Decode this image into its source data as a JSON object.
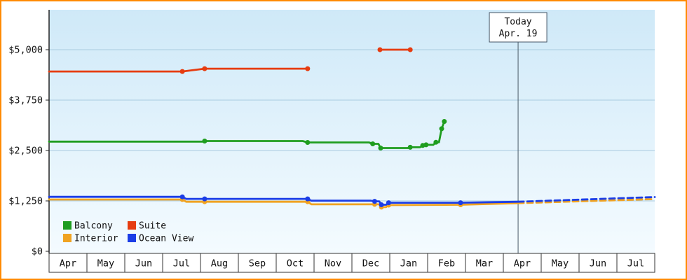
{
  "colors": {
    "frame_border": "#ff8a00",
    "plot_bg_top": "#cfe9f8",
    "plot_bg_bottom": "#f4fbff",
    "grid": "#a9cbdf",
    "axis": "#222222",
    "text": "#111111",
    "today_line": "#4a5a66",
    "today_box_border": "#445566",
    "today_box_bg": "#ffffff",
    "cell_bg": "#ffffff",
    "cell_border": "#333333"
  },
  "chart_data": {
    "type": "line",
    "title": "",
    "xlabel": "",
    "ylabel": "",
    "ylim": [
      0,
      6000
    ],
    "y_ticks": [
      {
        "value": 0,
        "label": "$0"
      },
      {
        "value": 1250,
        "label": "$1,250"
      },
      {
        "value": 2500,
        "label": "$2,500"
      },
      {
        "value": 3750,
        "label": "$3,750"
      },
      {
        "value": 5000,
        "label": "$5,000"
      }
    ],
    "months": [
      "Apr",
      "May",
      "Jun",
      "Jul",
      "Aug",
      "Sep",
      "Oct",
      "Nov",
      "Dec",
      "Jan",
      "Feb",
      "Mar",
      "Apr",
      "May",
      "Jun",
      "Jul"
    ],
    "today_marker": {
      "line1": "Today",
      "line2": "Apr. 19",
      "x_month": 12.39
    },
    "legend_rows": [
      [
        "Balcony",
        "Suite"
      ],
      [
        "Interior",
        "Ocean View"
      ]
    ],
    "series": [
      {
        "name": "Interior",
        "color": "#f0a322",
        "segments": [
          {
            "dashed": false,
            "points": [
              [
                0,
                1285
              ],
              [
                3.52,
                1285
              ],
              [
                3.62,
                1230
              ],
              [
                6.83,
                1230
              ],
              [
                6.93,
                1165
              ],
              [
                8.6,
                1165
              ],
              [
                8.72,
                1165
              ],
              [
                8.78,
                1095
              ],
              [
                8.9,
                1095
              ],
              [
                8.97,
                1145
              ],
              [
                10.87,
                1155
              ],
              [
                12.39,
                1195
              ]
            ]
          },
          {
            "dashed": true,
            "points": [
              [
                12.39,
                1195
              ],
              [
                16,
                1295
              ]
            ]
          }
        ],
        "markers": [
          [
            3.52,
            1285
          ],
          [
            4.11,
            1230
          ],
          [
            6.83,
            1230
          ],
          [
            8.6,
            1165
          ],
          [
            8.78,
            1095
          ],
          [
            8.97,
            1145
          ],
          [
            10.87,
            1155
          ]
        ]
      },
      {
        "name": "Ocean View",
        "color": "#1b3de6",
        "segments": [
          {
            "dashed": false,
            "points": [
              [
                0,
                1350
              ],
              [
                3.52,
                1350
              ],
              [
                3.62,
                1300
              ],
              [
                6.83,
                1300
              ],
              [
                6.93,
                1255
              ],
              [
                8.5,
                1255
              ],
              [
                8.6,
                1240
              ],
              [
                8.72,
                1240
              ],
              [
                8.78,
                1155
              ],
              [
                8.9,
                1155
              ],
              [
                8.97,
                1205
              ],
              [
                10.87,
                1205
              ],
              [
                12.39,
                1230
              ]
            ]
          },
          {
            "dashed": true,
            "points": [
              [
                12.39,
                1230
              ],
              [
                16,
                1345
              ]
            ]
          }
        ],
        "markers": [
          [
            3.52,
            1350
          ],
          [
            4.11,
            1300
          ],
          [
            6.83,
            1300
          ],
          [
            8.6,
            1240
          ],
          [
            8.78,
            1155
          ],
          [
            8.97,
            1205
          ],
          [
            10.87,
            1205
          ]
        ]
      },
      {
        "name": "Balcony",
        "color": "#1f9d1f",
        "segments": [
          {
            "dashed": false,
            "points": [
              [
                0,
                2720
              ],
              [
                4.05,
                2720
              ],
              [
                4.11,
                2735
              ],
              [
                6.7,
                2735
              ],
              [
                6.83,
                2700
              ],
              [
                8.45,
                2700
              ],
              [
                8.55,
                2665
              ],
              [
                8.7,
                2665
              ],
              [
                8.76,
                2560
              ],
              [
                9.48,
                2560
              ],
              [
                9.54,
                2580
              ],
              [
                9.8,
                2580
              ],
              [
                9.87,
                2625
              ],
              [
                9.96,
                2640
              ],
              [
                10.15,
                2640
              ],
              [
                10.22,
                2705
              ],
              [
                10.3,
                2705
              ],
              [
                10.37,
                3040
              ],
              [
                10.44,
                3220
              ]
            ]
          }
        ],
        "markers": [
          [
            4.11,
            2735
          ],
          [
            6.83,
            2700
          ],
          [
            8.55,
            2665
          ],
          [
            8.76,
            2560
          ],
          [
            9.54,
            2580
          ],
          [
            9.87,
            2625
          ],
          [
            9.96,
            2640
          ],
          [
            10.22,
            2705
          ],
          [
            10.37,
            3040
          ],
          [
            10.44,
            3220
          ]
        ]
      },
      {
        "name": "Suite",
        "color": "#e63c10",
        "segments": [
          {
            "dashed": false,
            "points": [
              [
                0,
                4460
              ],
              [
                3.52,
                4460
              ],
              [
                4.11,
                4530
              ],
              [
                6.83,
                4530
              ]
            ]
          },
          {
            "dashed": false,
            "points": [
              [
                8.74,
                5000
              ],
              [
                9.54,
                5000
              ]
            ]
          }
        ],
        "markers": [
          [
            3.52,
            4460
          ],
          [
            4.11,
            4530
          ],
          [
            6.83,
            4530
          ],
          [
            8.74,
            5000
          ],
          [
            9.54,
            5000
          ]
        ]
      }
    ]
  }
}
